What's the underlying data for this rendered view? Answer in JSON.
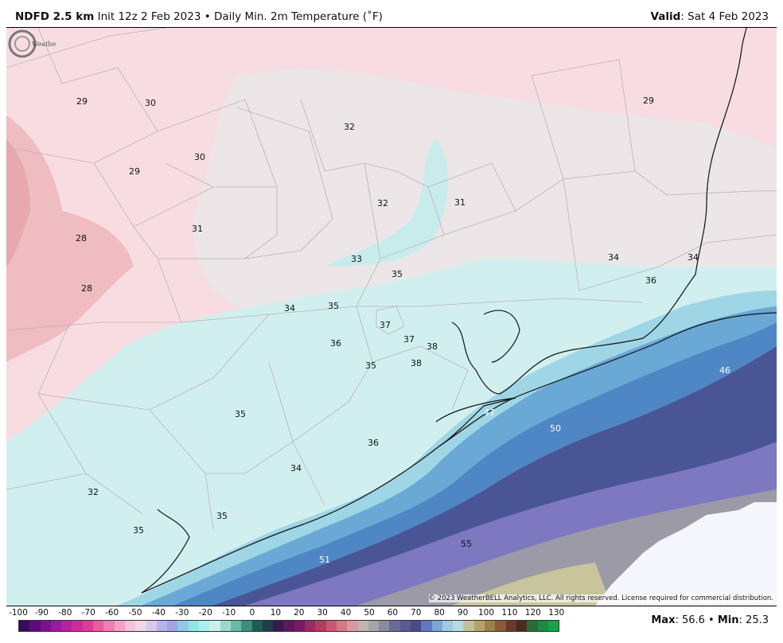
{
  "header": {
    "model": "NDFD 2.5 km",
    "init": "Init 12z 2 Feb 2023",
    "separator": "•",
    "product": "Daily Min. 2m Temperature (˚F)",
    "valid_label": "Valid",
    "valid_value": ": Sat 4 Feb 2023"
  },
  "map": {
    "copyright": "© 2023 WeatherBELL Analytics, LLC. All rights reserved. License required for commercial distribution.",
    "logo_text": "WeatherBELL",
    "colors": {
      "land_pink": "#f7d9de",
      "land_grey": "#ece4e6",
      "cyan": "#cdeeee",
      "blue": "#4f86c4",
      "navy": "#4a4f93",
      "violet": "#8582c6",
      "gray": "#a09ca8",
      "olive": "#c4c1a0",
      "nodata": "#f5f6fc"
    },
    "temps": [
      {
        "value": "29"
      },
      {
        "value": "30"
      },
      {
        "value": "32"
      },
      {
        "value": "29"
      },
      {
        "value": "30"
      },
      {
        "value": "29"
      },
      {
        "value": "32"
      },
      {
        "value": "31"
      },
      {
        "value": "28"
      },
      {
        "value": "31"
      },
      {
        "value": "33"
      },
      {
        "value": "35"
      },
      {
        "value": "34"
      },
      {
        "value": "34"
      },
      {
        "value": "36"
      },
      {
        "value": "28"
      },
      {
        "value": "34"
      },
      {
        "value": "35"
      },
      {
        "value": "37"
      },
      {
        "value": "37"
      },
      {
        "value": "38"
      },
      {
        "value": "36"
      },
      {
        "value": "35"
      },
      {
        "value": "38"
      },
      {
        "value": "46"
      },
      {
        "value": "47"
      },
      {
        "value": "50"
      },
      {
        "value": "35"
      },
      {
        "value": "36"
      },
      {
        "value": "34"
      },
      {
        "value": "32"
      },
      {
        "value": "35"
      },
      {
        "value": "35"
      },
      {
        "value": "55"
      },
      {
        "value": "51"
      }
    ]
  },
  "colorbar": {
    "ticks": [
      "-100",
      "-90",
      "-80",
      "-70",
      "-60",
      "-50",
      "-40",
      "-30",
      "-20",
      "-10",
      "0",
      "10",
      "20",
      "30",
      "40",
      "50",
      "60",
      "70",
      "80",
      "90",
      "100",
      "110",
      "120",
      "130"
    ],
    "colors": [
      "#3b0a5c",
      "#5a0d7a",
      "#7a1290",
      "#9a1aa0",
      "#b8209f",
      "#d02a9a",
      "#e03a98",
      "#ec5aa4",
      "#f27cb4",
      "#f4a0c6",
      "#f6c2d6",
      "#efd6e6",
      "#d8c8ef",
      "#b7b4ec",
      "#9ea6e6",
      "#8fcbe6",
      "#8fe6ea",
      "#a9f0ee",
      "#cbeff0",
      "#9ed8c8",
      "#6abaa8",
      "#3c8e7e",
      "#1c5c52",
      "#1f3d4a",
      "#3a1a4e",
      "#5a1a5e",
      "#7a1a62",
      "#9a2a62",
      "#b63a5e",
      "#c85a70",
      "#d47a86",
      "#dc98a2",
      "#c0b4b0",
      "#a8a4a8",
      "#8a8aa0",
      "#6a6a98",
      "#5a5a94",
      "#4a4a8a",
      "#5c7ac0",
      "#7aa6d8",
      "#9ccbe4",
      "#b7dce0",
      "#c2c09a",
      "#b4a46a",
      "#a0804a",
      "#8a5a3a",
      "#6a3a2a",
      "#4a2a22",
      "#2c6a3a",
      "#1e8a3e",
      "#12a448"
    ],
    "max_label": "Max",
    "max_value": ": 56.6 •",
    "min_label": "Min",
    "min_value": ": 25.3"
  }
}
